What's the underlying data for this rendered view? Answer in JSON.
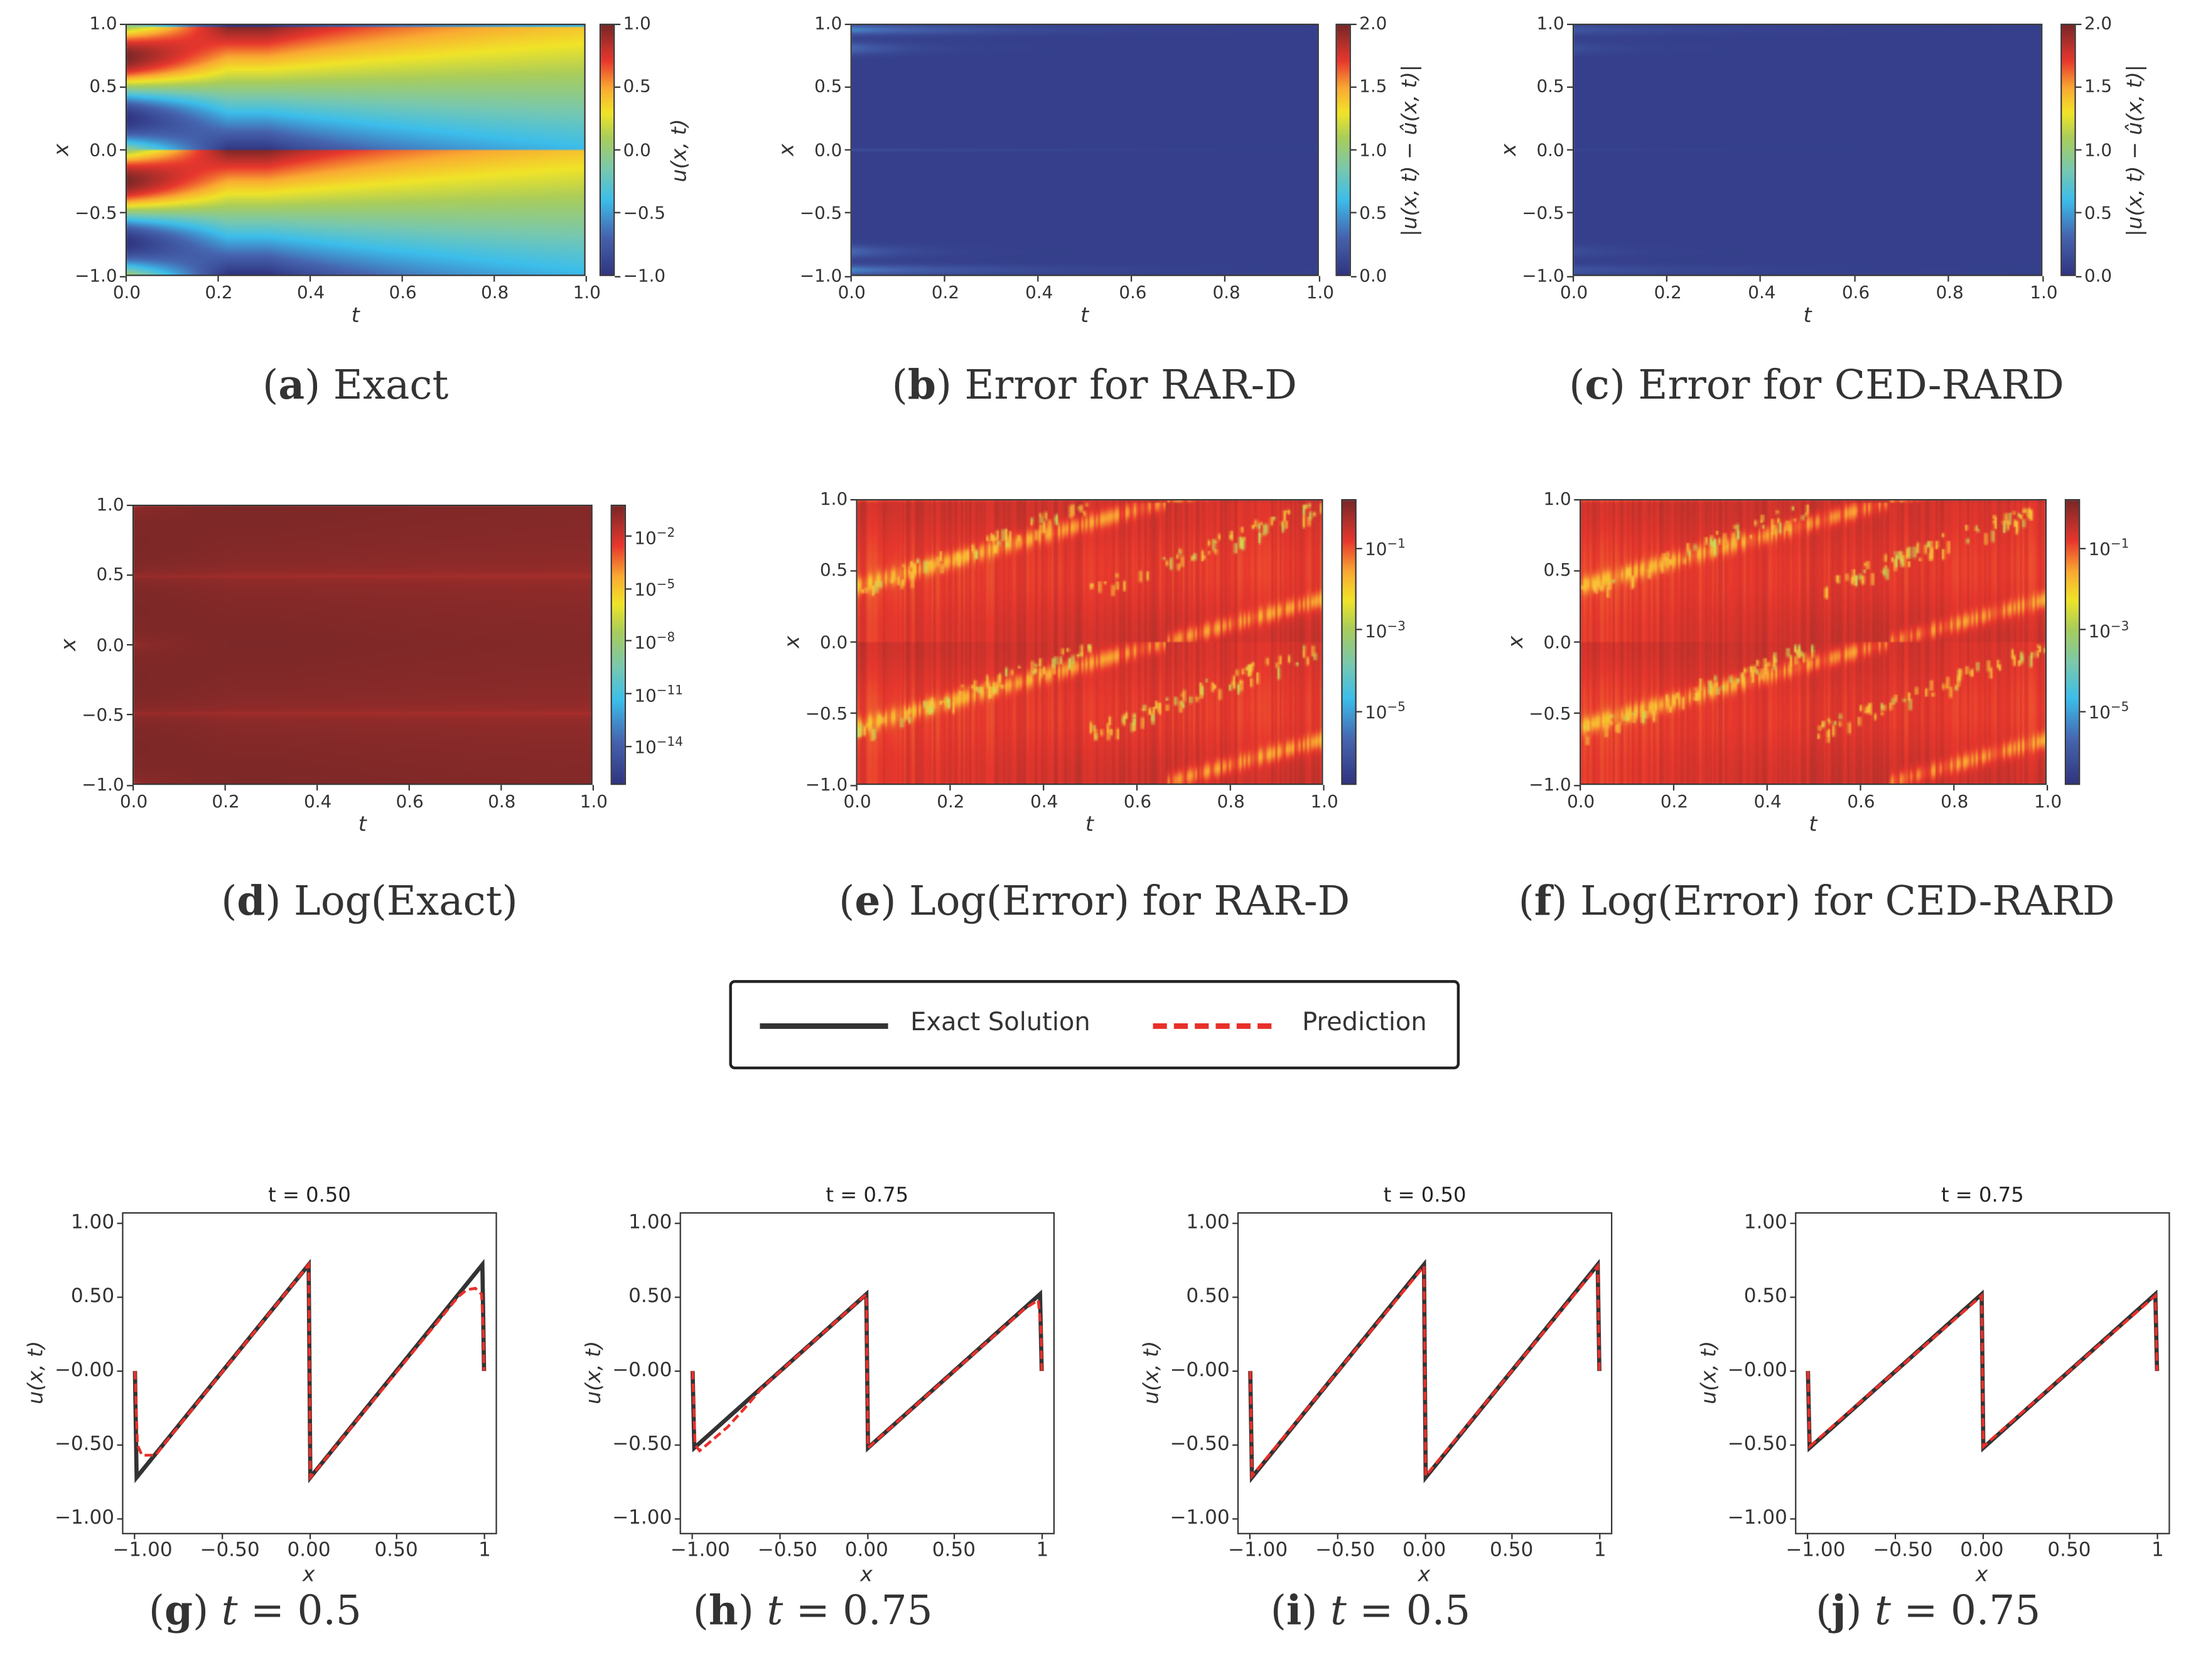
{
  "chart_data": [
    {
      "type": "heatmap",
      "panel": "a",
      "field": "exact",
      "xlabel": "t",
      "ylabel": "x",
      "xlim": [
        0,
        1
      ],
      "ylim": [
        -1,
        1
      ],
      "xticks": [
        "0.0",
        "0.2",
        "0.4",
        "0.6",
        "0.8",
        "1.0"
      ],
      "yticks": [
        "−1.0",
        "−0.5",
        "0.0",
        "0.5",
        "1.0"
      ],
      "colorbar": {
        "label": "u(x, t)",
        "scale": "linear",
        "range": [
          -1,
          1
        ],
        "ticks": [
          "−1.0",
          "−0.5",
          "0.0",
          "0.5",
          "1.0"
        ]
      },
      "caption": {
        "letter": "a",
        "text": "Exact"
      }
    },
    {
      "type": "heatmap",
      "panel": "b",
      "field": "error",
      "xlabel": "t",
      "ylabel": "x",
      "xlim": [
        0,
        1
      ],
      "ylim": [
        -1,
        1
      ],
      "xticks": [
        "0.0",
        "0.2",
        "0.4",
        "0.6",
        "0.8",
        "1.0"
      ],
      "yticks": [
        "−1.0",
        "−0.5",
        "0.0",
        "0.5",
        "1.0"
      ],
      "colorbar": {
        "label": "|u(x, t) − û(x, t)|",
        "scale": "linear",
        "range": [
          0,
          2
        ],
        "ticks": [
          "0.0",
          "0.5",
          "1.0",
          "1.5",
          "2.0"
        ]
      },
      "caption": {
        "letter": "b",
        "text": "Error for RAR-D"
      }
    },
    {
      "type": "heatmap",
      "panel": "c",
      "field": "error",
      "xlabel": "t",
      "ylabel": "x",
      "xlim": [
        0,
        1
      ],
      "ylim": [
        -1,
        1
      ],
      "xticks": [
        "0.0",
        "0.2",
        "0.4",
        "0.6",
        "0.8",
        "1.0"
      ],
      "yticks": [
        "−1.0",
        "−0.5",
        "0.0",
        "0.5",
        "1.0"
      ],
      "colorbar": {
        "label": "|u(x, t) − û(x, t)|",
        "scale": "linear",
        "range": [
          0,
          2
        ],
        "ticks": [
          "0.0",
          "0.5",
          "1.0",
          "1.5",
          "2.0"
        ]
      },
      "caption": {
        "letter": "c",
        "text": "Error for CED-RARD"
      }
    },
    {
      "type": "heatmap",
      "panel": "d",
      "field": "log_exact",
      "xlabel": "t",
      "ylabel": "x",
      "xlim": [
        0,
        1
      ],
      "ylim": [
        -1,
        1
      ],
      "xticks": [
        "0.0",
        "0.2",
        "0.4",
        "0.6",
        "0.8",
        "1.0"
      ],
      "yticks": [
        "−1.0",
        "−0.5",
        "0.0",
        "0.5",
        "1.0"
      ],
      "colorbar": {
        "label": "",
        "scale": "log",
        "range_exp": [
          -16.2,
          -0.2
        ],
        "ticks": [
          "10",
          "10",
          "10",
          "10",
          "10"
        ],
        "tick_exponents": [
          "−2",
          "−5",
          "−8",
          "−11",
          "−14"
        ],
        "tick_values": [
          -2,
          -5,
          -8,
          -11,
          -14
        ]
      },
      "caption": {
        "letter": "d",
        "text": "Log(Exact)"
      }
    },
    {
      "type": "heatmap",
      "panel": "e",
      "field": "log_error",
      "xlabel": "t",
      "ylabel": "x",
      "xlim": [
        0,
        1
      ],
      "ylim": [
        -1,
        1
      ],
      "xticks": [
        "0.0",
        "0.2",
        "0.4",
        "0.6",
        "0.8",
        "1.0"
      ],
      "yticks": [
        "−1.0",
        "−0.5",
        "0.0",
        "0.5",
        "1.0"
      ],
      "colorbar": {
        "label": "",
        "scale": "log",
        "range_exp": [
          -6.8,
          0.2
        ],
        "ticks": [
          "10",
          "10",
          "10"
        ],
        "tick_exponents": [
          "−1",
          "−3",
          "−5"
        ],
        "tick_values": [
          -1,
          -3,
          -5
        ]
      },
      "caption": {
        "letter": "e",
        "text": "Log(Error) for RAR-D"
      }
    },
    {
      "type": "heatmap",
      "panel": "f",
      "field": "log_error",
      "xlabel": "t",
      "ylabel": "x",
      "xlim": [
        0,
        1
      ],
      "ylim": [
        -1,
        1
      ],
      "xticks": [
        "0.0",
        "0.2",
        "0.4",
        "0.6",
        "0.8",
        "1.0"
      ],
      "yticks": [
        "−1.0",
        "−0.5",
        "0.0",
        "0.5",
        "1.0"
      ],
      "colorbar": {
        "label": "",
        "scale": "log",
        "range_exp": [
          -6.8,
          0.2
        ],
        "ticks": [
          "10",
          "10",
          "10"
        ],
        "tick_exponents": [
          "−1",
          "−3",
          "−5"
        ],
        "tick_values": [
          -1,
          -3,
          -5
        ]
      },
      "caption": {
        "letter": "f",
        "text": "Log(Error) for CED-RARD"
      }
    },
    {
      "type": "line",
      "panel": "g",
      "title": "t = 0.50",
      "xlabel": "x",
      "ylabel": "u(x, t)",
      "xlim": [
        -1.07,
        1.07
      ],
      "ylim": [
        -1.1,
        1.07
      ],
      "xticks": [
        "−1.00",
        "−0.50",
        "0.00",
        "0.50",
        "1"
      ],
      "xtick_values": [
        -1,
        -0.5,
        0,
        0.5,
        1
      ],
      "yticks": [
        "1.00",
        "0.50",
        "−0.00",
        "−0.50",
        "−1.00"
      ],
      "ytick_values": [
        1,
        0.5,
        0,
        -0.5,
        -1
      ],
      "series": [
        {
          "name": "Exact Solution",
          "x": [
            -1,
            -0.99,
            -0.005,
            0.005,
            0.99,
            1
          ],
          "y": [
            0,
            -0.72,
            0.72,
            -0.72,
            0.72,
            0
          ]
        },
        {
          "name": "Prediction",
          "x": [
            -1,
            -0.985,
            -0.96,
            -0.88,
            -0.85,
            -0.005,
            0.005,
            0.85,
            0.9,
            0.95,
            0.985,
            0.995,
            1
          ],
          "y": [
            0,
            -0.5,
            -0.57,
            -0.57,
            -0.52,
            0.72,
            -0.72,
            0.5,
            0.55,
            0.56,
            0.52,
            0.3,
            0
          ]
        }
      ],
      "caption": {
        "letter": "g",
        "var": "t",
        "text": " = 0.5"
      }
    },
    {
      "type": "line",
      "panel": "h",
      "title": "t = 0.75",
      "xlabel": "x",
      "ylabel": "u(x, t)",
      "xlim": [
        -1.07,
        1.07
      ],
      "ylim": [
        -1.1,
        1.07
      ],
      "xticks": [
        "−1.00",
        "−0.50",
        "0.00",
        "0.50",
        "1"
      ],
      "xtick_values": [
        -1,
        -0.5,
        0,
        0.5,
        1
      ],
      "yticks": [
        "1.00",
        "0.50",
        "−0.00",
        "−0.50",
        "−1.00"
      ],
      "ytick_values": [
        1,
        0.5,
        0,
        -0.5,
        -1
      ],
      "series": [
        {
          "name": "Exact Solution",
          "x": [
            -1,
            -0.99,
            -0.005,
            0.005,
            0.99,
            1
          ],
          "y": [
            0,
            -0.52,
            0.52,
            -0.52,
            0.52,
            0
          ]
        },
        {
          "name": "Prediction",
          "x": [
            -1,
            -0.985,
            -0.96,
            -0.9,
            -0.8,
            -0.7,
            -0.6,
            -0.005,
            0.005,
            0.9,
            0.98,
            0.995,
            1
          ],
          "y": [
            0,
            -0.5,
            -0.54,
            -0.48,
            -0.38,
            -0.25,
            -0.11,
            0.52,
            -0.52,
            0.42,
            0.48,
            0.3,
            0
          ]
        }
      ],
      "caption": {
        "letter": "h",
        "var": "t",
        "text": " = 0.75"
      }
    },
    {
      "type": "line",
      "panel": "i",
      "title": "t = 0.50",
      "xlabel": "x",
      "ylabel": "u(x, t)",
      "xlim": [
        -1.07,
        1.07
      ],
      "ylim": [
        -1.1,
        1.07
      ],
      "xticks": [
        "−1.00",
        "−0.50",
        "0.00",
        "0.50",
        "1"
      ],
      "xtick_values": [
        -1,
        -0.5,
        0,
        0.5,
        1
      ],
      "yticks": [
        "1.00",
        "0.50",
        "−0.00",
        "−0.50",
        "−1.00"
      ],
      "ytick_values": [
        1,
        0.5,
        0,
        -0.5,
        -1
      ],
      "series": [
        {
          "name": "Exact Solution",
          "x": [
            -1,
            -0.99,
            -0.005,
            0.005,
            0.99,
            1
          ],
          "y": [
            0,
            -0.72,
            0.72,
            -0.72,
            0.72,
            0
          ]
        },
        {
          "name": "Prediction",
          "x": [
            -1,
            -0.99,
            -0.005,
            0.005,
            0.99,
            1
          ],
          "y": [
            0,
            -0.71,
            0.71,
            -0.71,
            0.71,
            0
          ]
        }
      ],
      "caption": {
        "letter": "i",
        "var": "t",
        "text": " = 0.5"
      }
    },
    {
      "type": "line",
      "panel": "j",
      "title": "t = 0.75",
      "xlabel": "x",
      "ylabel": "u(x, t)",
      "xlim": [
        -1.07,
        1.07
      ],
      "ylim": [
        -1.1,
        1.07
      ],
      "xticks": [
        "−1.00",
        "−0.50",
        "0.00",
        "0.50",
        "1"
      ],
      "xtick_values": [
        -1,
        -0.5,
        0,
        0.5,
        1
      ],
      "yticks": [
        "1.00",
        "0.50",
        "−0.00",
        "−0.50",
        "−1.00"
      ],
      "ytick_values": [
        1,
        0.5,
        0,
        -0.5,
        -1
      ],
      "series": [
        {
          "name": "Exact Solution",
          "x": [
            -1,
            -0.99,
            -0.005,
            0.005,
            0.99,
            1
          ],
          "y": [
            0,
            -0.52,
            0.52,
            -0.52,
            0.52,
            0
          ]
        },
        {
          "name": "Prediction",
          "x": [
            -1,
            -0.99,
            -0.005,
            0.005,
            0.99,
            1
          ],
          "y": [
            0,
            -0.51,
            0.51,
            -0.51,
            0.51,
            0
          ]
        }
      ],
      "caption": {
        "letter": "j",
        "var": "t",
        "text": " = 0.75"
      }
    }
  ],
  "legend": {
    "items": [
      {
        "label": "Exact Solution",
        "color": "#333333",
        "style": "solid"
      },
      {
        "label": "Prediction",
        "color": "#e8302a",
        "style": "dashed"
      }
    ]
  },
  "colors": {
    "exact": "#333333",
    "prediction": "#e8302a",
    "axis": "#333333"
  }
}
